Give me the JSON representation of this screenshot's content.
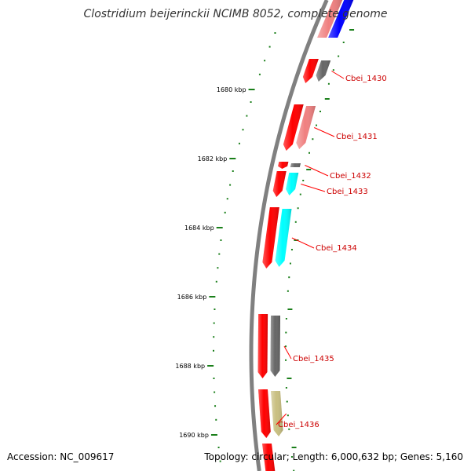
{
  "title": "Clostridium beijerinckii NCIMB 8052, complete genome",
  "accession_text": "Accession: NC_009617",
  "summary_text": "Topology: circular; Length: 6,000,632 bp; Genes: 5,160",
  "colors": {
    "backbone": "#808080",
    "tick": "#1a7f1a",
    "label": "#cc0000",
    "leader": "#ff0000",
    "red": "#ff0000",
    "pink": "#f08080",
    "gray": "#666666",
    "cyan": "#00ffff",
    "blue": "#0000ff",
    "olive": "#c8bf80"
  },
  "kbp_labels": [
    "1680 kbp",
    "1682 kbp",
    "1684 kbp",
    "1686 kbp",
    "1688 kbp",
    "1690 kbp"
  ],
  "genes": [
    {
      "label": "Cbei_1430",
      "color_a": "red",
      "color_b": "gray"
    },
    {
      "label": "Cbei_1431",
      "color_a": "red",
      "color_b": "pink"
    },
    {
      "label": "Cbei_1432",
      "color_a": "red",
      "color_b": "gray"
    },
    {
      "label": "Cbei_1433",
      "color_a": "red",
      "color_b": "cyan"
    },
    {
      "label": "Cbei_1434",
      "color_a": "red",
      "color_b": "cyan"
    },
    {
      "label": "Cbei_1435",
      "color_a": "red",
      "color_b": "gray"
    },
    {
      "label": "Cbei_1436",
      "color_a": "red",
      "color_b": "olive"
    }
  ],
  "partial_features": [
    {
      "color_a": "pink",
      "color_b": "blue"
    },
    {
      "color_a": "red",
      "color_b": "none"
    }
  ]
}
